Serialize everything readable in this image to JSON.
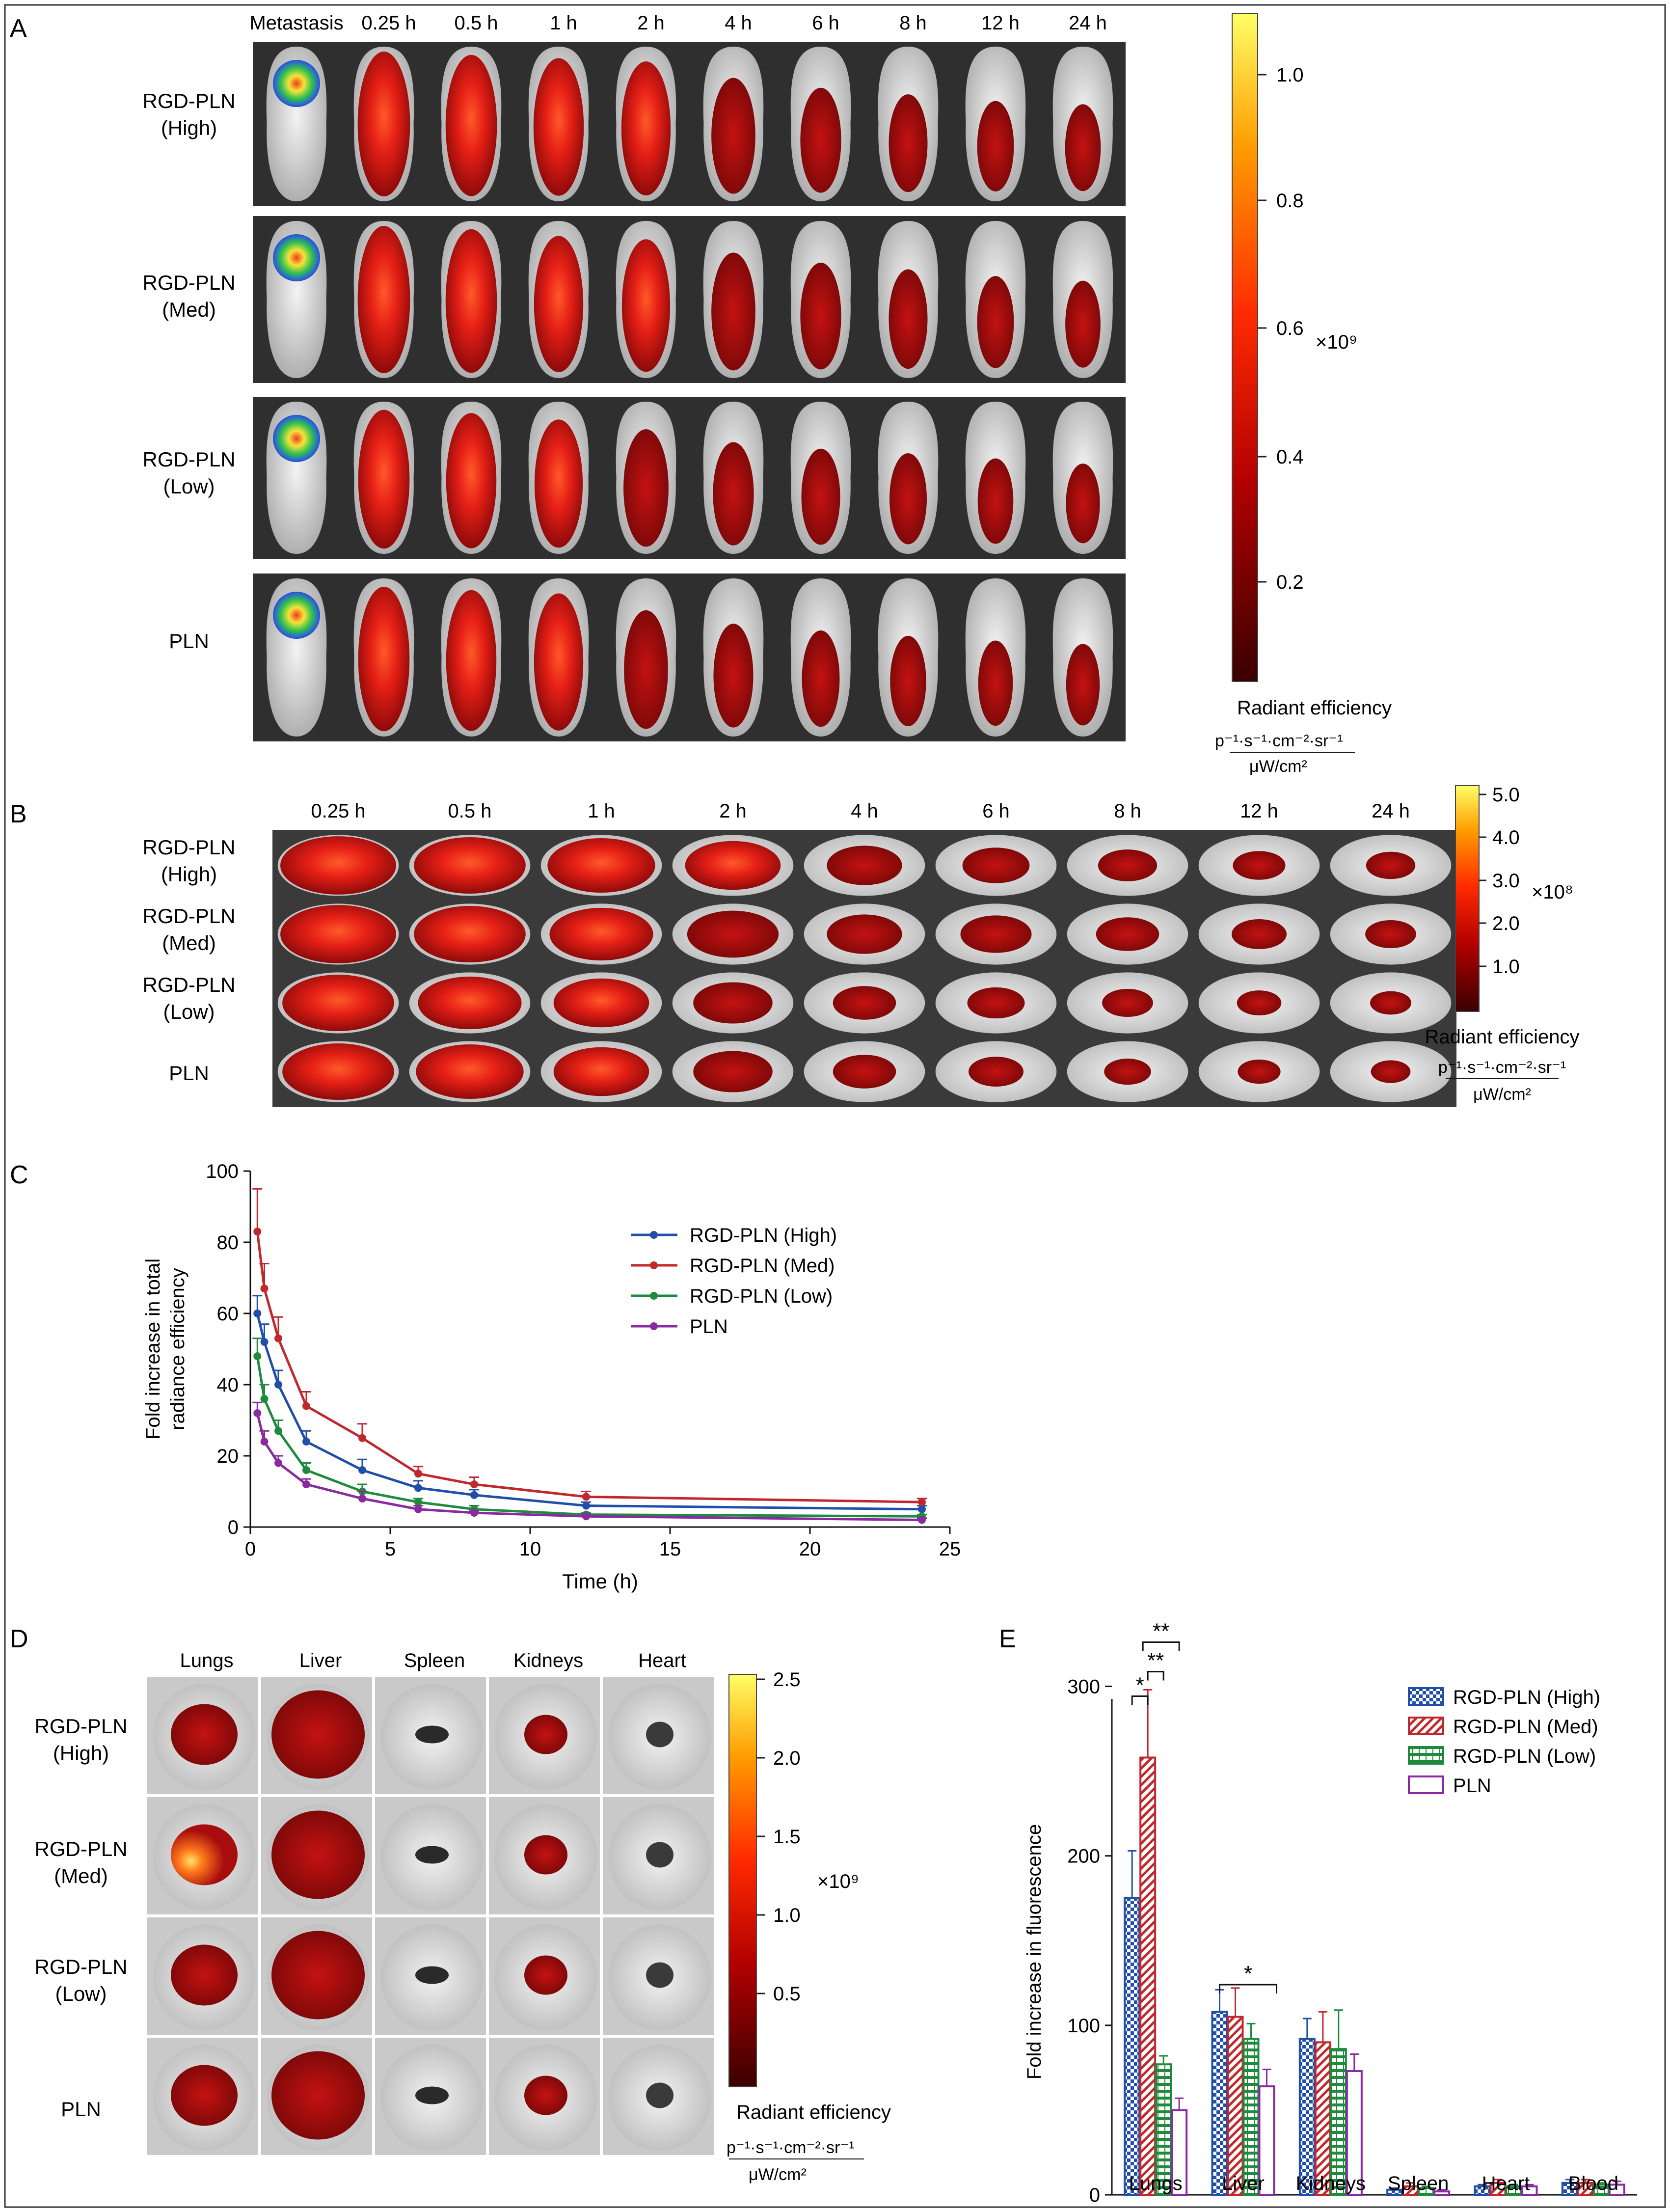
{
  "panel_a": {
    "letter": "A",
    "timepoints": [
      "Metastasis",
      "0.25 h",
      "0.5 h",
      "1 h",
      "2 h",
      "4 h",
      "6 h",
      "8 h",
      "12 h",
      "24 h"
    ],
    "rows": [
      {
        "line1": "RGD-PLN",
        "line2": "(High)"
      },
      {
        "line1": "RGD-PLN",
        "line2": "(Med)"
      },
      {
        "line1": "RGD-PLN",
        "line2": "(Low)"
      },
      {
        "line1": "PLN",
        "line2": ""
      }
    ],
    "colorbar": {
      "ticks": [
        "1.0",
        "0.8",
        "0.6",
        "0.4",
        "0.2"
      ],
      "multiplier": "×10⁹",
      "title": "Radiant efficiency",
      "unit_num": "p⁻¹·s⁻¹·cm⁻²·sr⁻¹",
      "unit_den": "μW/cm²"
    }
  },
  "panel_b": {
    "letter": "B",
    "timepoints": [
      "0.25 h",
      "0.5 h",
      "1 h",
      "2 h",
      "4 h",
      "6 h",
      "8 h",
      "12 h",
      "24 h"
    ],
    "rows": [
      {
        "line1": "RGD-PLN",
        "line2": "(High)"
      },
      {
        "line1": "RGD-PLN",
        "line2": "(Med)"
      },
      {
        "line1": "RGD-PLN",
        "line2": "(Low)"
      },
      {
        "line1": "PLN",
        "line2": ""
      }
    ],
    "colorbar": {
      "ticks": [
        "5.0",
        "4.0",
        "3.0",
        "2.0",
        "1.0"
      ],
      "multiplier": "×10⁸",
      "title": "Radiant efficiency",
      "unit_num": "p⁻¹·s⁻¹·cm⁻²·sr⁻¹",
      "unit_den": "μW/cm²"
    }
  },
  "panel_c": {
    "letter": "C"
  },
  "panel_d": {
    "letter": "D",
    "organs": [
      "Lungs",
      "Liver",
      "Spleen",
      "Kidneys",
      "Heart"
    ],
    "rows": [
      {
        "line1": "RGD-PLN",
        "line2": "(High)"
      },
      {
        "line1": "RGD-PLN",
        "line2": "(Med)"
      },
      {
        "line1": "RGD-PLN",
        "line2": "(Low)"
      },
      {
        "line1": "PLN",
        "line2": ""
      }
    ],
    "colorbar": {
      "ticks": [
        "2.5",
        "2.0",
        "1.5",
        "1.0",
        "0.5"
      ],
      "multiplier": "×10⁹",
      "title": "Radiant efficiency",
      "unit_num": "p⁻¹·s⁻¹·cm⁻²·sr⁻¹",
      "unit_den": "μW/cm²"
    }
  },
  "panel_e": {
    "letter": "E"
  },
  "colors": {
    "high": "#1f4fa8",
    "med": "#c0282d",
    "low": "#1e8a3c",
    "pln": "#8a2aa0",
    "signal": "#b01010"
  },
  "chart_data": [
    {
      "type": "line",
      "panel": "C",
      "title": "",
      "xlabel": "Time (h)",
      "ylabel": "Fold increase in total radiance efficiency",
      "xlim": [
        0,
        25
      ],
      "ylim": [
        0,
        100
      ],
      "xticks": [
        0,
        5,
        10,
        15,
        20,
        25
      ],
      "yticks": [
        0,
        20,
        40,
        60,
        80,
        100
      ],
      "x": [
        0.25,
        0.5,
        1,
        2,
        4,
        6,
        8,
        12,
        24
      ],
      "series": [
        {
          "name": "RGD-PLN (High)",
          "key": "high",
          "values": [
            60,
            52,
            40,
            24,
            16,
            11,
            9,
            6,
            5
          ],
          "errors": [
            5,
            5,
            4,
            3,
            3,
            2,
            1.5,
            1,
            1
          ]
        },
        {
          "name": "RGD-PLN (Med)",
          "key": "med",
          "values": [
            83,
            67,
            53,
            34,
            25,
            15,
            12,
            8.5,
            7
          ],
          "errors": [
            12,
            7,
            6,
            4,
            4,
            2,
            2,
            1.5,
            1
          ]
        },
        {
          "name": "RGD-PLN (Low)",
          "key": "low",
          "values": [
            48,
            36,
            27,
            16,
            10,
            7,
            5,
            3.5,
            3
          ],
          "errors": [
            5,
            4,
            3,
            2,
            2,
            1,
            1,
            0.5,
            0.5
          ]
        },
        {
          "name": "PLN",
          "key": "pln",
          "values": [
            32,
            24,
            18,
            12,
            8,
            5,
            4,
            3,
            2
          ],
          "errors": [
            3,
            3,
            2,
            1.5,
            2,
            1,
            0.5,
            0.5,
            0.5
          ]
        }
      ],
      "legend": "top-right"
    },
    {
      "type": "bar",
      "panel": "E",
      "title": "",
      "xlabel": "",
      "ylabel": "Fold increase in fluorescence",
      "ylim": [
        0,
        310
      ],
      "yticks": [
        0,
        100,
        200,
        300
      ],
      "categories": [
        "Lungs",
        "Liver",
        "Kidneys",
        "Spleen",
        "Heart",
        "Blood"
      ],
      "series": [
        {
          "name": "RGD-PLN (High)",
          "key": "high",
          "values": [
            175,
            108,
            92,
            3,
            5,
            7
          ],
          "errors": [
            28,
            13,
            12,
            1,
            1,
            2
          ]
        },
        {
          "name": "RGD-PLN (Med)",
          "key": "med",
          "values": [
            258,
            105,
            90,
            5,
            7,
            7
          ],
          "errors": [
            40,
            17,
            18,
            2,
            2,
            2
          ]
        },
        {
          "name": "RGD-PLN (Low)",
          "key": "low",
          "values": [
            77,
            92,
            86,
            4,
            5,
            6
          ],
          "errors": [
            5,
            9,
            23,
            1,
            1,
            1
          ]
        },
        {
          "name": "PLN",
          "key": "pln",
          "values": [
            50,
            64,
            73,
            2,
            5,
            6
          ],
          "errors": [
            7,
            10,
            10,
            1,
            1,
            2
          ]
        }
      ],
      "significance": [
        {
          "label": "*",
          "category": "Lungs",
          "between": [
            "RGD-PLN (High)",
            "RGD-PLN (Med)"
          ]
        },
        {
          "label": "**",
          "category": "Lungs",
          "between": [
            "RGD-PLN (Med)",
            "RGD-PLN (Low)"
          ]
        },
        {
          "label": "**",
          "category": "Lungs",
          "between": [
            "RGD-PLN (Med)",
            "PLN"
          ]
        },
        {
          "label": "*",
          "category": "Liver",
          "between": [
            "RGD-PLN (High)",
            "PLN"
          ]
        }
      ],
      "legend": "top-right"
    }
  ]
}
